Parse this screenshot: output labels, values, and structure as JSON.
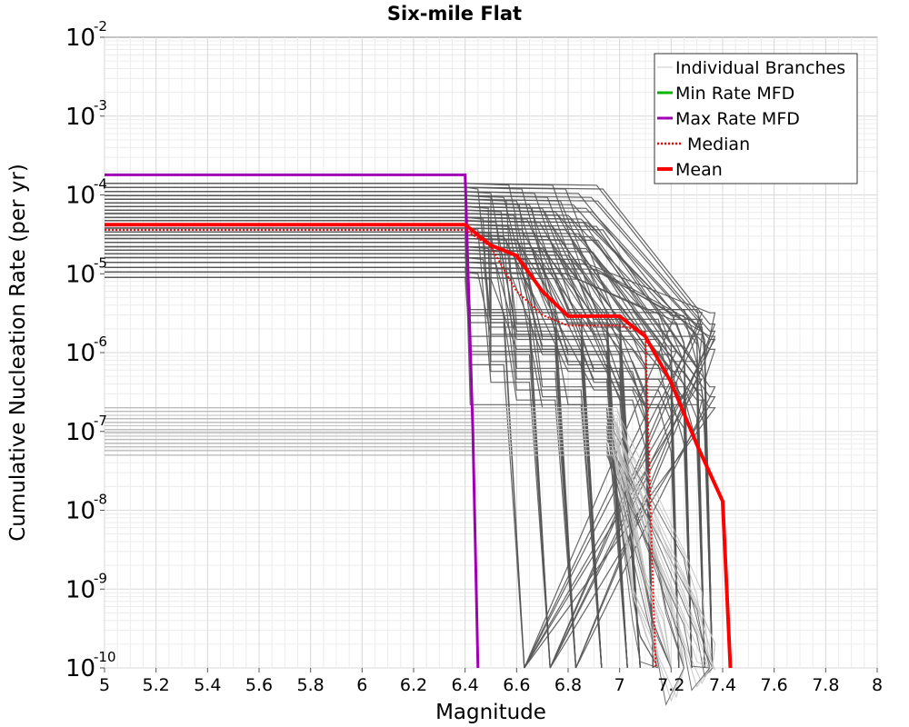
{
  "chart_data": {
    "type": "line",
    "title": "Six-mile Flat",
    "xlabel": "Magnitude",
    "ylabel": "Cumulative Nucleation Rate (per yr)",
    "xlim": [
      5,
      8
    ],
    "ylim": [
      1e-10,
      0.01
    ],
    "yscale": "log",
    "grid": true,
    "legend_position": "top-right",
    "x_ticks": [
      "5",
      "5.2",
      "5.4",
      "5.6",
      "5.8",
      "6",
      "6.2",
      "6.4",
      "6.6",
      "6.8",
      "7",
      "7.2",
      "7.4",
      "7.6",
      "7.8",
      "8"
    ],
    "y_ticks": [
      {
        "base": "10",
        "exp": "-10"
      },
      {
        "base": "10",
        "exp": "-9"
      },
      {
        "base": "10",
        "exp": "-8"
      },
      {
        "base": "10",
        "exp": "-7"
      },
      {
        "base": "10",
        "exp": "-6"
      },
      {
        "base": "10",
        "exp": "-5"
      },
      {
        "base": "10",
        "exp": "-4"
      },
      {
        "base": "10",
        "exp": "-3"
      },
      {
        "base": "10",
        "exp": "-2"
      }
    ],
    "legend": [
      {
        "label": "Individual Branches",
        "color": "#c8c8c8",
        "style": "solid-thin"
      },
      {
        "label": "Min Rate MFD",
        "color": "#00b400",
        "style": "solid"
      },
      {
        "label": "Max Rate MFD",
        "color": "#a000b4",
        "style": "solid"
      },
      {
        "label": "Median",
        "color": "#ff0000",
        "style": "dotted"
      },
      {
        "label": "Mean",
        "color": "#ff0000",
        "style": "solid-thick"
      }
    ],
    "series": [
      {
        "name": "Max Rate MFD",
        "color": "#a000b4",
        "x": [
          5.0,
          6.4,
          6.43,
          6.45
        ],
        "y": [
          0.00018,
          0.00018,
          1e-07,
          1e-10
        ]
      },
      {
        "name": "Median",
        "color": "#ff0000",
        "dashed": true,
        "x": [
          5.0,
          6.4,
          6.5,
          6.6,
          6.7,
          6.8,
          7.0,
          7.1,
          7.12,
          7.14
        ],
        "y": [
          3.6e-05,
          3.6e-05,
          2.2e-05,
          6e-06,
          3e-06,
          2.2e-06,
          2.2e-06,
          1.8e-06,
          1e-08,
          1e-10
        ]
      },
      {
        "name": "Mean",
        "color": "#ff0000",
        "x": [
          5.0,
          6.4,
          6.5,
          6.6,
          6.7,
          6.8,
          7.0,
          7.1,
          7.2,
          7.3,
          7.4,
          7.43
        ],
        "y": [
          4.2e-05,
          4.2e-05,
          2.3e-05,
          1.7e-05,
          6e-06,
          2.9e-06,
          2.9e-06,
          1.6e-06,
          4.2e-07,
          6.8e-08,
          1.3e-08,
          1e-10
        ]
      }
    ],
    "branches_high": {
      "color": "#555555",
      "levels": [
        0.00014,
        0.000125,
        0.00011,
        9.8e-05,
        8.8e-05,
        7.9e-05,
        7.1e-05,
        6.4e-05,
        5.8e-05,
        5.2e-05,
        4.7e-05,
        4.2e-05,
        3.8e-05,
        3.4e-05,
        3.1e-05,
        2.8e-05,
        2.5e-05,
        2.2e-05,
        2e-05,
        1.8e-05,
        1.6e-05,
        1.4e-05,
        1.2e-05,
        1.05e-05,
        9e-06
      ],
      "drop_x": [
        6.4,
        6.5,
        6.6,
        6.7,
        6.8,
        6.9,
        7.0,
        7.1,
        7.2,
        7.3,
        7.35
      ],
      "step_levels": [
        3.2e-06,
        2.8e-06,
        2.4e-06,
        2e-06,
        1.7e-06,
        1.4e-06,
        1.1e-06,
        9e-07,
        7e-07,
        5.5e-07,
        4.2e-07,
        3.2e-07,
        2.5e-07,
        1.9e-07
      ],
      "cutoff_x": [
        6.6,
        6.7,
        6.8,
        6.9,
        7.0,
        7.05,
        7.1,
        7.2,
        7.25,
        7.3,
        7.35
      ]
    },
    "branches_low": {
      "color": "#5a5a5a",
      "levels": [
        2e-07,
        1.8e-07,
        1.6e-07,
        1.45e-07,
        1.3e-07,
        1.18e-07,
        1.06e-07,
        9.6e-08,
        8.7e-08,
        7.9e-08,
        7.1e-08,
        6.4e-08,
        5.7e-08,
        5e-08
      ],
      "drop_x": [
        7.0,
        7.05,
        7.1,
        7.2,
        7.25
      ]
    }
  }
}
